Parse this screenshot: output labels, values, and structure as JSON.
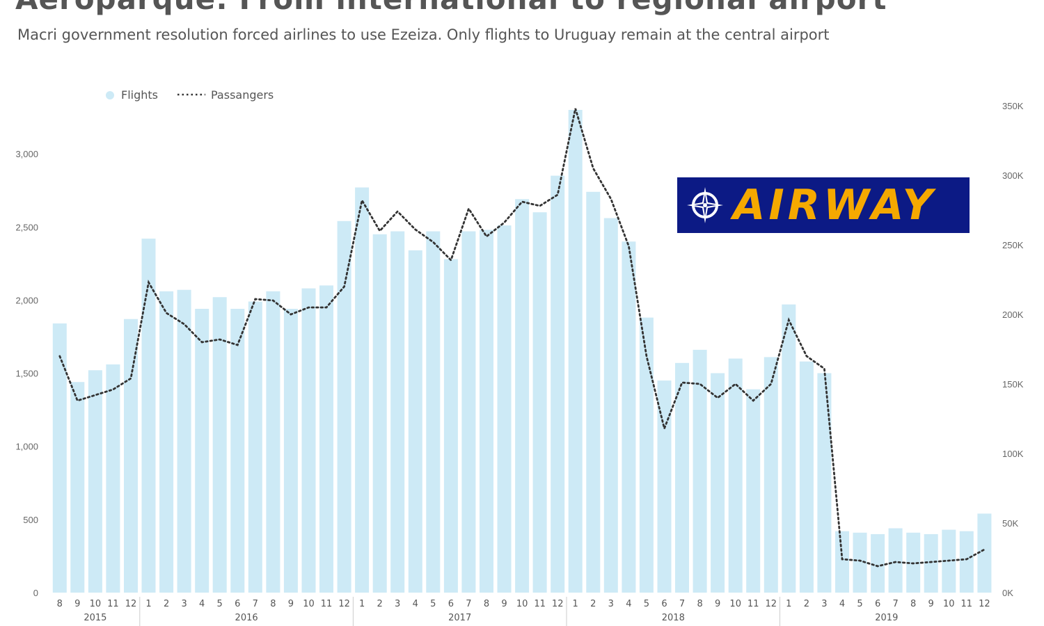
{
  "title": "Aeroparque: From international to regional airport",
  "subtitle": "Macri government resolution forced airlines to use Ezeiza. Only flights to Uruguay remain at the central airport",
  "logo": {
    "text": "AIRWAY",
    "icon": "compass-icon",
    "background": "#0c1a85",
    "color": "#f5a900"
  },
  "colors": {
    "bars": "#cdeaf6",
    "line": "#333333",
    "text": "#555555"
  },
  "chart_data": {
    "type": "bar+line",
    "title": "",
    "legend": {
      "position": "top-left",
      "entries": [
        "Flights",
        "Passangers"
      ]
    },
    "grid": false,
    "x_months": [
      "8",
      "9",
      "10",
      "11",
      "12",
      "1",
      "2",
      "3",
      "4",
      "5",
      "6",
      "7",
      "8",
      "9",
      "10",
      "11",
      "12",
      "1",
      "2",
      "3",
      "4",
      "5",
      "6",
      "7",
      "8",
      "9",
      "10",
      "11",
      "12",
      "1",
      "2",
      "3",
      "4",
      "5",
      "6",
      "7",
      "8",
      "9",
      "10",
      "11",
      "12",
      "1",
      "2",
      "3",
      "4",
      "5",
      "6",
      "7",
      "8",
      "9",
      "10",
      "11",
      "12"
    ],
    "x_years": [
      {
        "label": "2015",
        "start": 0,
        "count": 5
      },
      {
        "label": "2016",
        "start": 5,
        "count": 12
      },
      {
        "label": "2017",
        "start": 17,
        "count": 12
      },
      {
        "label": "2018",
        "start": 29,
        "count": 12
      },
      {
        "label": "2019",
        "start": 41,
        "count": 12
      }
    ],
    "y_left": {
      "ticks": [
        "0",
        "500",
        "1,000",
        "1,500",
        "2,000",
        "2,500",
        "3,000"
      ],
      "range": [
        0,
        3300
      ]
    },
    "y_right": {
      "ticks": [
        "0K",
        "50K",
        "100K",
        "150K",
        "200K",
        "250K",
        "300K",
        "350K"
      ],
      "range": [
        0,
        350000
      ]
    },
    "series": [
      {
        "name": "Flights",
        "kind": "bar",
        "axis": "left",
        "values": [
          1840,
          1440,
          1520,
          1560,
          1870,
          2420,
          2060,
          2070,
          1940,
          2020,
          1940,
          1990,
          2060,
          1940,
          2080,
          2100,
          2540,
          2770,
          2450,
          2470,
          2340,
          2470,
          2280,
          2470,
          2480,
          2510,
          2690,
          2600,
          2850,
          3300,
          2740,
          2560,
          2400,
          1880,
          1450,
          1570,
          1660,
          1500,
          1600,
          1390,
          1610,
          1970,
          1580,
          1500,
          420,
          410,
          400,
          440,
          410,
          400,
          430,
          420,
          540
        ]
      },
      {
        "name": "Passangers",
        "kind": "line",
        "axis": "right",
        "values": [
          170000,
          138000,
          142000,
          146000,
          154000,
          223000,
          201000,
          193000,
          180000,
          182000,
          178000,
          211000,
          210000,
          200000,
          205000,
          205000,
          220000,
          282000,
          260000,
          274000,
          261000,
          252000,
          239000,
          276000,
          256000,
          266000,
          281000,
          278000,
          286000,
          348000,
          305000,
          283000,
          249000,
          170000,
          118000,
          151000,
          150000,
          140000,
          150000,
          138000,
          150000,
          196000,
          170000,
          161000,
          24000,
          23000,
          19000,
          22000,
          21000,
          22000,
          23000,
          24000,
          31000
        ]
      }
    ]
  }
}
